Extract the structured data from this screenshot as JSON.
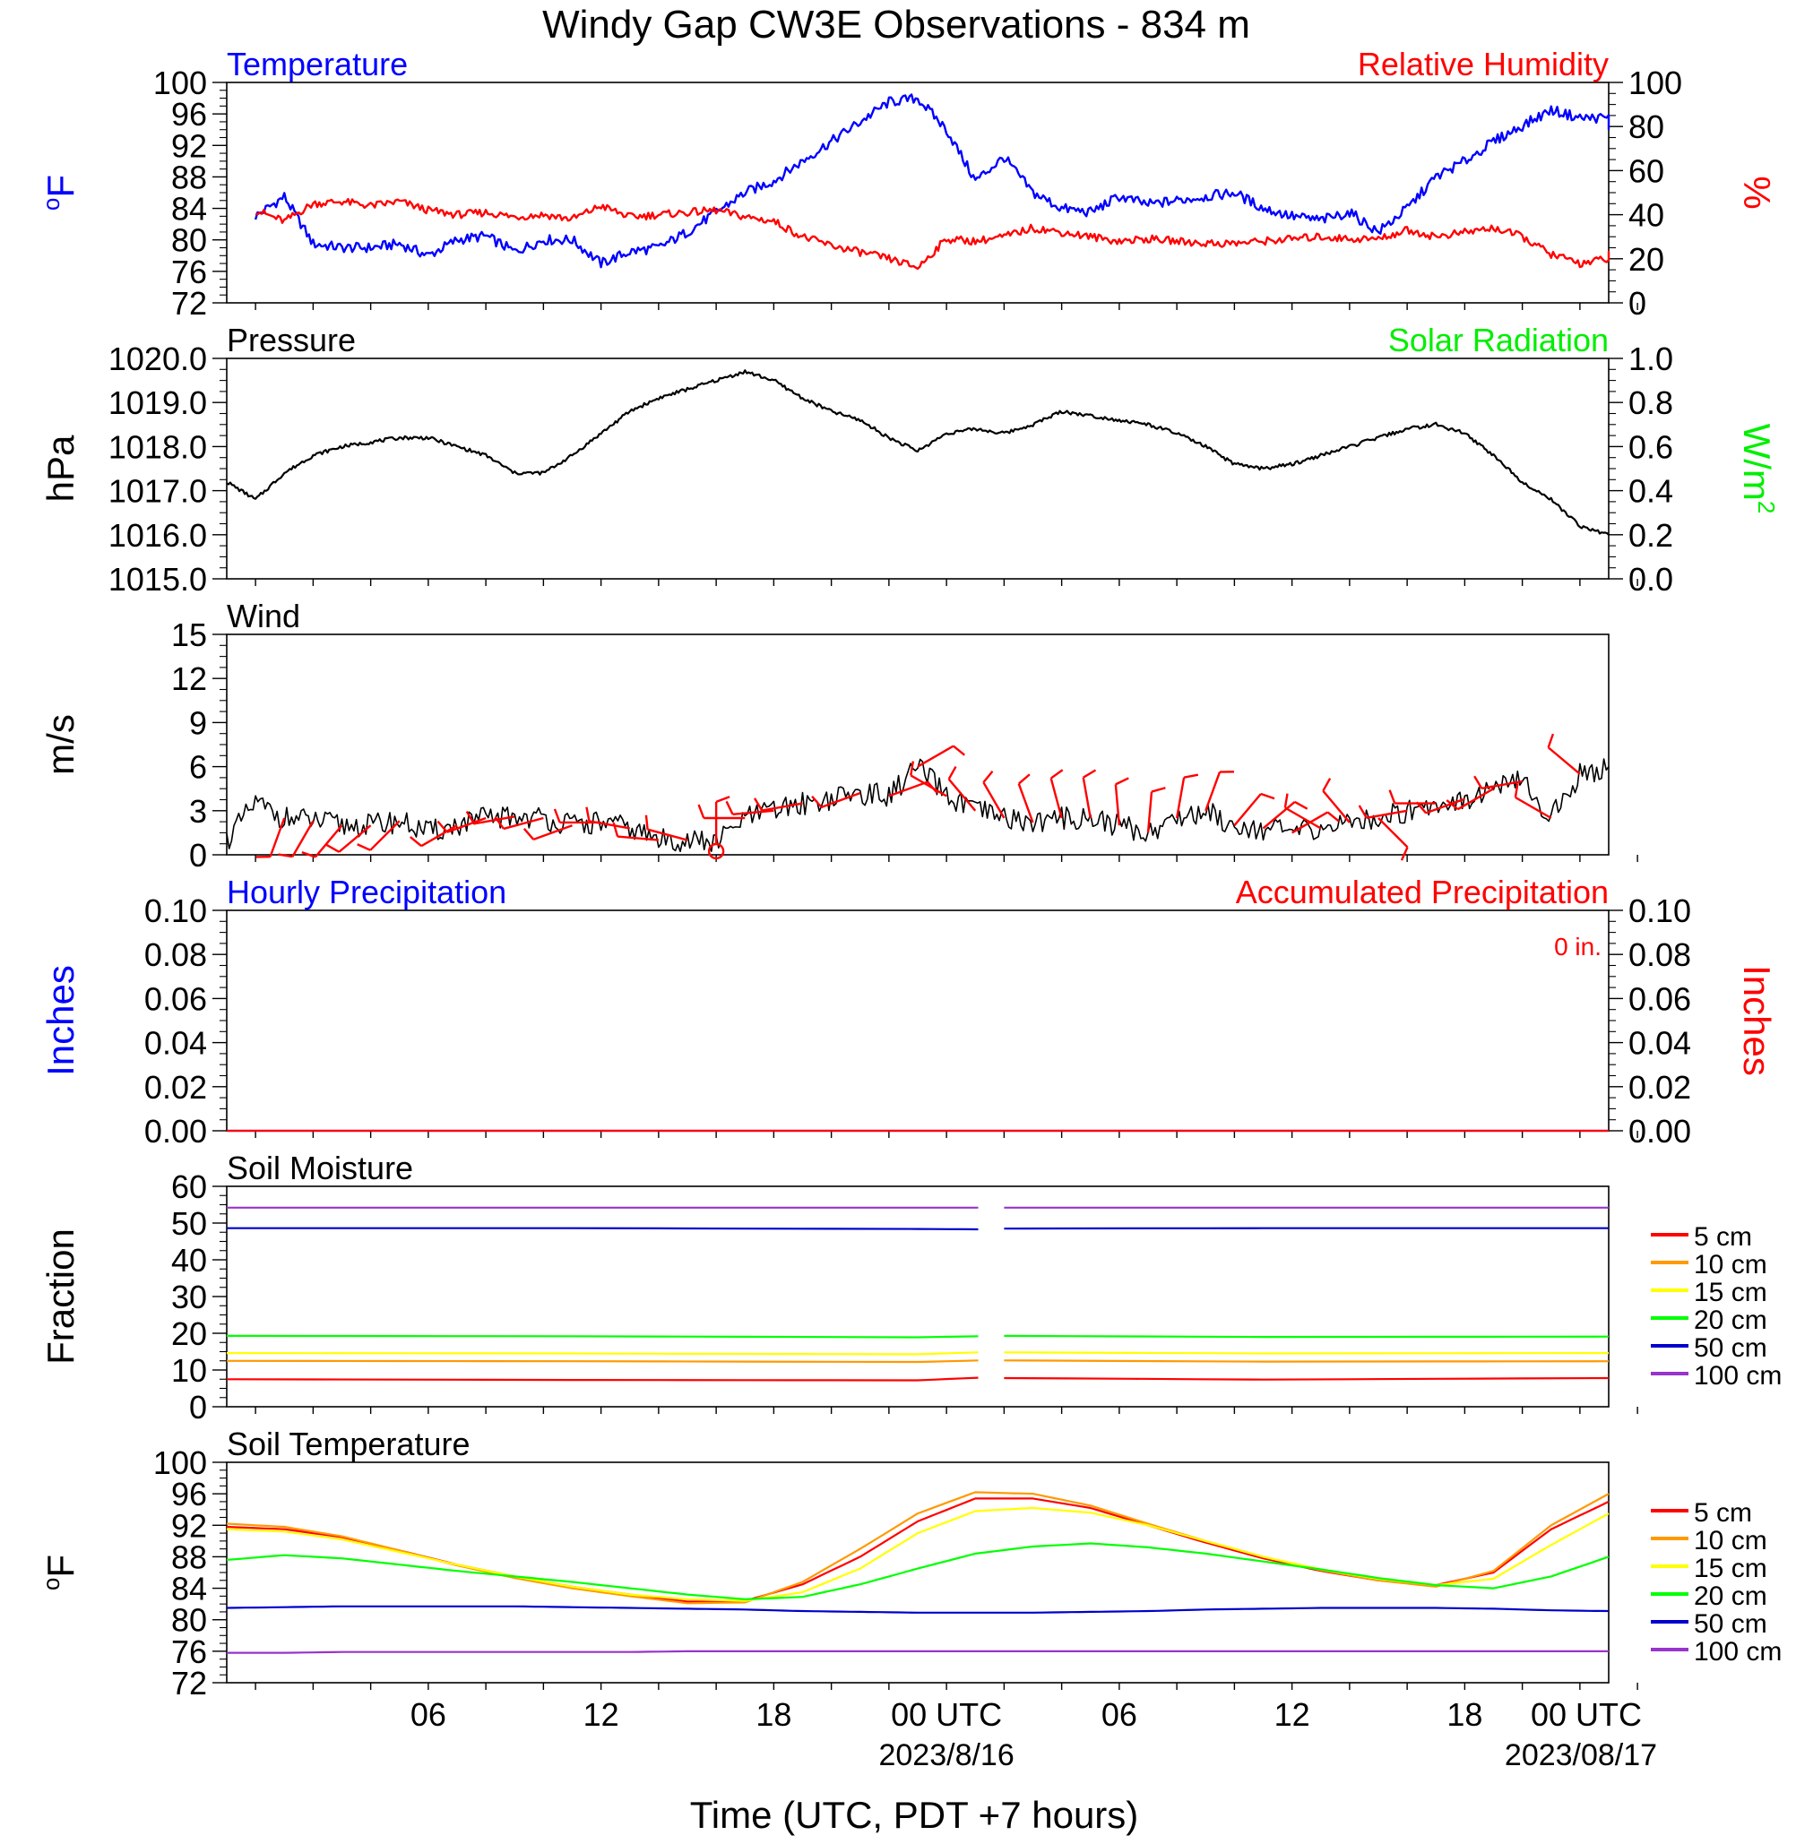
{
  "title": "Windy Gap CW3E Observations - 834 m",
  "x_axis": {
    "label": "Time (UTC, PDT +7 hours)",
    "ticks": [
      "06",
      "12",
      "18",
      "00 UTC",
      "06",
      "12",
      "18",
      "00 UTC"
    ],
    "dates": [
      "2023/8/16",
      "2023/08/17"
    ]
  },
  "chart_data": [
    {
      "type": "line",
      "panel": "temperature_humidity",
      "left_title": "Temperature",
      "right_title": "Relative Humidity",
      "ylabel_left": "oF",
      "ylabel_right": "%",
      "ylim_left": [
        72,
        100
      ],
      "ylim_right": [
        0,
        100
      ],
      "yticks_left": [
        "72",
        "76",
        "80",
        "84",
        "88",
        "92",
        "96",
        "100"
      ],
      "yticks_right": [
        "0",
        "20",
        "40",
        "60",
        "80",
        "100"
      ],
      "x_hours": [
        1,
        2,
        3,
        4,
        5,
        6,
        7,
        8,
        9,
        10,
        11,
        12,
        13,
        14,
        15,
        16,
        17,
        18,
        19,
        20,
        21,
        22,
        23,
        24,
        25,
        26,
        27,
        28,
        29,
        30,
        31,
        32,
        33,
        34,
        35,
        36,
        37,
        38,
        39,
        40,
        41,
        42,
        43,
        44,
        45,
        46,
        47,
        48,
        49
      ],
      "series": [
        {
          "name": "Temperature",
          "axis": "left",
          "color": "#0000ff",
          "values": [
            83,
            85.5,
            79.5,
            79,
            79,
            79.5,
            78,
            80,
            80.5,
            78.5,
            80,
            80,
            77,
            78.5,
            79,
            81,
            83.5,
            86,
            87.5,
            90,
            92.5,
            95,
            97.5,
            98,
            94,
            87.5,
            90.5,
            86,
            84,
            83.5,
            85.5,
            84.5,
            85,
            85.5,
            86,
            84,
            83,
            82.5,
            83.5,
            81,
            84,
            88,
            90,
            92.5,
            94.5,
            96.5,
            95.5,
            95.5,
            94
          ]
        },
        {
          "name": "Relative Humidity",
          "axis": "right",
          "color": "#ff0000",
          "values": [
            42,
            37,
            45,
            46,
            44,
            46,
            42,
            40,
            41,
            39,
            40,
            38,
            44,
            39,
            40,
            41,
            42,
            39,
            37,
            30,
            26,
            23,
            20,
            16,
            29,
            28,
            30,
            34,
            32,
            30,
            28,
            29,
            28,
            27,
            27,
            28,
            29,
            30,
            29,
            29,
            33,
            30,
            32,
            34,
            30,
            22,
            18,
            20,
            23
          ]
        }
      ]
    },
    {
      "type": "line",
      "panel": "pressure",
      "left_title": "Pressure",
      "right_title": "Solar Radiation",
      "ylabel_left": "hPa",
      "ylabel_right": "W/m",
      "ylabel_right_sup": "2",
      "ylim_left": [
        1015.0,
        1020.0
      ],
      "ylim_right": [
        0.0,
        1.0
      ],
      "yticks_left": [
        "1015.0",
        "1016.0",
        "1017.0",
        "1018.0",
        "1019.0",
        "1020.0"
      ],
      "yticks_right": [
        "0.0",
        "0.2",
        "0.4",
        "0.6",
        "0.8",
        "1.0"
      ],
      "x_hours": [
        0,
        1,
        2,
        3,
        4,
        5,
        6,
        7,
        8,
        9,
        10,
        11,
        12,
        13,
        14,
        15,
        16,
        17,
        18,
        19,
        20,
        21,
        22,
        23,
        24,
        25,
        26,
        27,
        28,
        29,
        30,
        31,
        32,
        33,
        34,
        35,
        36,
        37,
        38,
        39,
        40,
        41,
        42,
        43,
        44,
        45,
        46,
        47,
        48
      ],
      "series": [
        {
          "name": "Pressure",
          "axis": "left",
          "color": "#000000",
          "values": [
            1017.2,
            1016.8,
            1017.4,
            1017.8,
            1018.0,
            1018.1,
            1018.2,
            1018.2,
            1018.0,
            1017.8,
            1017.4,
            1017.4,
            1017.8,
            1018.3,
            1018.8,
            1019.1,
            1019.3,
            1019.5,
            1019.7,
            1019.5,
            1019.1,
            1018.8,
            1018.6,
            1018.2,
            1017.9,
            1018.3,
            1018.4,
            1018.3,
            1018.5,
            1018.8,
            1018.7,
            1018.6,
            1018.5,
            1018.3,
            1018.0,
            1017.6,
            1017.5,
            1017.6,
            1017.8,
            1018.0,
            1018.2,
            1018.4,
            1018.5,
            1018.3,
            1017.8,
            1017.2,
            1016.8,
            1016.2,
            1016.0
          ]
        }
      ]
    },
    {
      "type": "line",
      "panel": "wind",
      "left_title": "Wind",
      "ylabel_left": "m/s",
      "ylim_left": [
        0,
        15
      ],
      "yticks_left": [
        "0",
        "3",
        "6",
        "9",
        "12",
        "15"
      ],
      "x_hours": [
        0,
        1,
        2,
        3,
        4,
        5,
        6,
        7,
        8,
        9,
        10,
        11,
        12,
        13,
        14,
        15,
        16,
        17,
        18,
        19,
        20,
        21,
        22,
        23,
        24,
        25,
        26,
        27,
        28,
        29,
        30,
        31,
        32,
        33,
        34,
        35,
        36,
        37,
        38,
        39,
        40,
        41,
        42,
        43,
        44,
        45,
        46,
        47,
        48
      ],
      "series": [
        {
          "name": "Wind speed",
          "axis": "left",
          "color": "#000000",
          "values": [
            1.0,
            3.5,
            2.5,
            2.3,
            2.0,
            2.0,
            2.3,
            1.5,
            2.0,
            2.5,
            2.6,
            2.5,
            2.0,
            2.2,
            1.8,
            1.0,
            1.0,
            0.8,
            2.5,
            3.0,
            3.5,
            3.8,
            4.2,
            4.0,
            6.0,
            4.0,
            3.0,
            2.5,
            2.2,
            2.5,
            2.5,
            2.0,
            1.5,
            2.5,
            3.0,
            2.0,
            1.8,
            1.5,
            1.8,
            2.2,
            2.5,
            3.0,
            3.5,
            3.8,
            4.5,
            5.0,
            2.5,
            5.5,
            6.0
          ]
        }
      ],
      "barb_hours": [
        2,
        3,
        4,
        5,
        6,
        8,
        9,
        10,
        11,
        12,
        13,
        14,
        15,
        16,
        17,
        18,
        19,
        20,
        22,
        23,
        24,
        25,
        26,
        27,
        28,
        29,
        30,
        31,
        32,
        33,
        34,
        35,
        36,
        37,
        38,
        39,
        40,
        41,
        42,
        43,
        44,
        45,
        46,
        47
      ],
      "barb_dirs": [
        200,
        210,
        220,
        230,
        225,
        240,
        250,
        260,
        255,
        250,
        270,
        280,
        275,
        285,
        0,
        270,
        265,
        260,
        250,
        70,
        60,
        300,
        320,
        330,
        340,
        345,
        350,
        355,
        5,
        10,
        20,
        40,
        50,
        60,
        300,
        320,
        135,
        260,
        270,
        250,
        240,
        260,
        300,
        310
      ]
    },
    {
      "type": "line",
      "panel": "precipitation",
      "left_title": "Hourly Precipitation",
      "right_title": "Accumulated Precipitation",
      "annotation": "0 in.",
      "ylabel_left": "Inches",
      "ylabel_right": "Inches",
      "ylim_left": [
        0,
        0.1
      ],
      "ylim_right": [
        0,
        0.1
      ],
      "yticks_left": [
        "0.00",
        "0.02",
        "0.04",
        "0.06",
        "0.08",
        "0.10"
      ],
      "yticks_right": [
        "0.00",
        "0.02",
        "0.04",
        "0.06",
        "0.08",
        "0.10"
      ],
      "x_hours": [
        0,
        48
      ],
      "series": [
        {
          "name": "Hourly Precipitation",
          "axis": "left",
          "color": "#0000ff",
          "values": [
            0,
            0
          ]
        },
        {
          "name": "Accumulated Precipitation",
          "axis": "right",
          "color": "#ff0000",
          "values": [
            0,
            0
          ]
        }
      ]
    },
    {
      "type": "line",
      "panel": "soil_moisture",
      "left_title": "Soil Moisture",
      "ylabel_left": "Fraction",
      "ylim_left": [
        0,
        60
      ],
      "yticks_left": [
        "0",
        "10",
        "20",
        "30",
        "40",
        "50",
        "60"
      ],
      "gap_hours": [
        26.1,
        27.0
      ],
      "x_hours": [
        0,
        12,
        24,
        26.1,
        27.0,
        36,
        48
      ],
      "series": [
        {
          "name": "5 cm",
          "color": "#ff0000",
          "values": [
            7.5,
            7.3,
            7.2,
            7.9,
            7.8,
            7.4,
            7.8
          ]
        },
        {
          "name": "10 cm",
          "color": "#ff9900",
          "values": [
            12.5,
            12.4,
            12.2,
            12.6,
            12.6,
            12.3,
            12.4
          ]
        },
        {
          "name": "15 cm",
          "color": "#ffff00",
          "values": [
            14.6,
            14.5,
            14.3,
            14.8,
            14.8,
            14.5,
            14.6
          ]
        },
        {
          "name": "20 cm",
          "color": "#00ff00",
          "values": [
            19.3,
            19.2,
            18.9,
            19.2,
            19.3,
            19.0,
            19.1
          ]
        },
        {
          "name": "50 cm",
          "color": "#0000cc",
          "values": [
            48.6,
            48.6,
            48.4,
            48.3,
            48.5,
            48.6,
            48.6
          ]
        },
        {
          "name": "100 cm",
          "color": "#9933cc",
          "values": [
            54.2,
            54.2,
            54.2,
            54.2,
            54.2,
            54.2,
            54.2
          ]
        }
      ]
    },
    {
      "type": "line",
      "panel": "soil_temperature",
      "left_title": "Soil Temperature",
      "ylabel_left": "oF",
      "ylim_left": [
        72,
        100
      ],
      "yticks_left": [
        "72",
        "76",
        "80",
        "84",
        "88",
        "92",
        "96",
        "100"
      ],
      "x_hours": [
        0,
        2,
        4,
        6,
        8,
        10,
        12,
        14,
        16,
        18,
        20,
        22,
        24,
        26,
        28,
        30,
        32,
        34,
        36,
        38,
        40,
        42,
        44,
        46,
        48
      ],
      "series": [
        {
          "name": "5 cm",
          "color": "#ff0000",
          "values": [
            91.8,
            91.5,
            90.5,
            88.8,
            87.0,
            85.5,
            84.2,
            83.2,
            82.3,
            82.4,
            84.5,
            88.0,
            92.5,
            95.4,
            95.4,
            94.2,
            92.0,
            89.8,
            87.8,
            86.2,
            85.0,
            84.4,
            86.0,
            91.5,
            95.0
          ]
        },
        {
          "name": "10 cm",
          "color": "#ff9900",
          "values": [
            92.2,
            91.8,
            90.6,
            88.8,
            86.9,
            85.3,
            84.0,
            83.0,
            82.1,
            82.2,
            84.8,
            89.0,
            93.5,
            96.2,
            96.0,
            94.5,
            92.2,
            90.0,
            88.0,
            86.3,
            85.0,
            84.2,
            86.2,
            92.0,
            96.0
          ]
        },
        {
          "name": "15 cm",
          "color": "#ffff00",
          "values": [
            91.5,
            91.2,
            90.2,
            88.6,
            87.0,
            85.5,
            84.2,
            83.2,
            82.6,
            82.4,
            83.5,
            86.5,
            91.0,
            93.8,
            94.2,
            93.6,
            92.0,
            90.0,
            88.0,
            86.4,
            85.2,
            84.4,
            85.2,
            89.5,
            93.5
          ]
        },
        {
          "name": "20 cm",
          "color": "#00ff00",
          "values": [
            87.6,
            88.2,
            87.8,
            87.0,
            86.2,
            85.5,
            84.8,
            84.0,
            83.2,
            82.6,
            82.9,
            84.5,
            86.5,
            88.4,
            89.3,
            89.7,
            89.2,
            88.4,
            87.4,
            86.4,
            85.3,
            84.4,
            84.0,
            85.5,
            88.0
          ]
        },
        {
          "name": "50 cm",
          "color": "#0000cc",
          "values": [
            81.5,
            81.6,
            81.7,
            81.7,
            81.7,
            81.7,
            81.6,
            81.5,
            81.4,
            81.3,
            81.1,
            81.0,
            80.9,
            80.9,
            80.9,
            81.0,
            81.1,
            81.3,
            81.4,
            81.5,
            81.5,
            81.5,
            81.4,
            81.2,
            81.1
          ]
        },
        {
          "name": "100 cm",
          "color": "#9933cc",
          "values": [
            75.8,
            75.8,
            75.9,
            75.9,
            75.9,
            75.9,
            75.9,
            75.9,
            76.0,
            76.0,
            76.0,
            76.0,
            76.0,
            76.0,
            76.0,
            76.0,
            76.0,
            76.0,
            76.0,
            76.0,
            76.0,
            76.0,
            76.0,
            76.0,
            76.0
          ]
        }
      ]
    }
  ],
  "legend": {
    "entries": [
      {
        "name": "5 cm",
        "color": "#ff0000"
      },
      {
        "name": "10 cm",
        "color": "#ff9900"
      },
      {
        "name": "15 cm",
        "color": "#ffff00"
      },
      {
        "name": "20 cm",
        "color": "#00ff00"
      },
      {
        "name": "50 cm",
        "color": "#0000cc"
      },
      {
        "name": "100 cm",
        "color": "#9933cc"
      }
    ]
  }
}
